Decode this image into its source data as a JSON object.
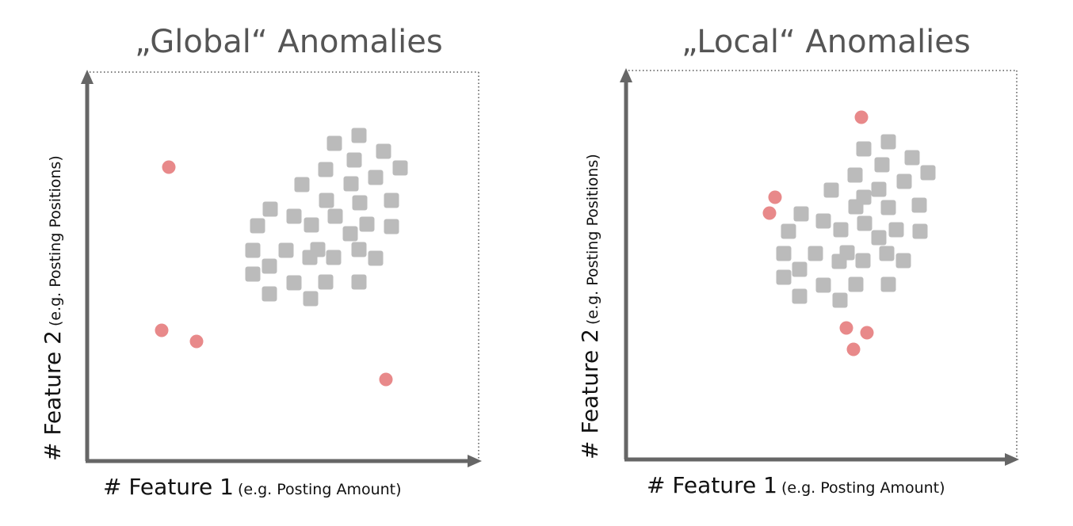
{
  "panels": [
    {
      "id": "global",
      "title": "„Global“ Anomalies",
      "xlabel": {
        "main": "# Feature 1",
        "sub": "(e.g. Posting Amount)"
      },
      "ylabel": {
        "main": "# Feature 2",
        "sub": "(e.g. Posting Positions)"
      },
      "normal_color": "#bbbbbb",
      "anomaly_color": "#e8898a",
      "normal_points": [
        [
          453,
          171
        ],
        [
          422,
          181
        ],
        [
          484,
          191
        ],
        [
          447,
          202
        ],
        [
          411,
          214
        ],
        [
          505,
          212
        ],
        [
          474,
          224
        ],
        [
          381,
          233
        ],
        [
          443,
          232
        ],
        [
          412,
          253
        ],
        [
          454,
          256
        ],
        [
          494,
          253
        ],
        [
          341,
          264
        ],
        [
          371,
          273
        ],
        [
          423,
          273
        ],
        [
          325,
          285
        ],
        [
          393,
          284
        ],
        [
          463,
          283
        ],
        [
          494,
          286
        ],
        [
          442,
          295
        ],
        [
          319,
          316
        ],
        [
          361,
          316
        ],
        [
          401,
          315
        ],
        [
          453,
          315
        ],
        [
          391,
          325
        ],
        [
          421,
          325
        ],
        [
          474,
          326
        ],
        [
          340,
          336
        ],
        [
          319,
          346
        ],
        [
          371,
          357
        ],
        [
          411,
          356
        ],
        [
          453,
          356
        ],
        [
          340,
          371
        ],
        [
          392,
          377
        ]
      ],
      "anomaly_points": [
        [
          213,
          211
        ],
        [
          204,
          417
        ],
        [
          248,
          431
        ],
        [
          487,
          479
        ]
      ]
    },
    {
      "id": "local",
      "title": "„Local“ Anomalies",
      "xlabel": {
        "main": "# Feature 1",
        "sub": "(e.g. Posting Amount)"
      },
      "ylabel": {
        "main": "# Feature 2",
        "sub": "(e.g. Posting Positions)"
      },
      "normal_color": "#bbbbbb",
      "anomaly_color": "#e8898a",
      "normal_points": [
        [
          1121,
          179
        ],
        [
          1090,
          188
        ],
        [
          1151,
          199
        ],
        [
          1113,
          208
        ],
        [
          1171,
          218
        ],
        [
          1079,
          221
        ],
        [
          1141,
          229
        ],
        [
          1109,
          239
        ],
        [
          1049,
          240
        ],
        [
          1090,
          249
        ],
        [
          1080,
          261
        ],
        [
          1121,
          262
        ],
        [
          1160,
          259
        ],
        [
          1011,
          270
        ],
        [
          1039,
          279
        ],
        [
          1091,
          282
        ],
        [
          995,
          292
        ],
        [
          1061,
          290
        ],
        [
          1131,
          290
        ],
        [
          1161,
          292
        ],
        [
          1109,
          300
        ],
        [
          989,
          320
        ],
        [
          1029,
          320
        ],
        [
          1069,
          319
        ],
        [
          1119,
          320
        ],
        [
          1059,
          330
        ],
        [
          1089,
          329
        ],
        [
          1140,
          329
        ],
        [
          1009,
          340
        ],
        [
          989,
          350
        ],
        [
          1039,
          360
        ],
        [
          1080,
          359
        ],
        [
          1121,
          359
        ],
        [
          1009,
          374
        ],
        [
          1060,
          379
        ]
      ],
      "anomaly_points": [
        [
          1087,
          148
        ],
        [
          978,
          249
        ],
        [
          971,
          269
        ],
        [
          1068,
          414
        ],
        [
          1094,
          420
        ],
        [
          1077,
          441
        ]
      ]
    }
  ]
}
